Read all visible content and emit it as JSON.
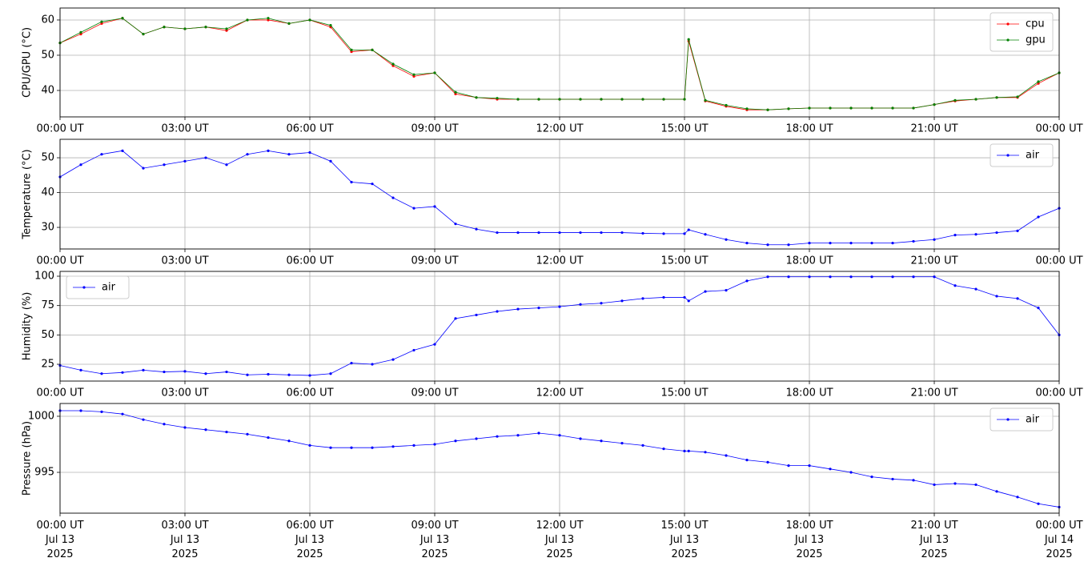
{
  "chart_data": [
    {
      "type": "line",
      "y_label": "CPU/GPU (°C)",
      "grid": true,
      "legend": "upper right",
      "xlim": [
        0,
        24
      ],
      "ylim": [
        32.5,
        63.4
      ],
      "yticks": [
        40,
        50,
        60
      ],
      "xticks": [
        {
          "value": 0,
          "label": "00:00 UT"
        },
        {
          "value": 3,
          "label": "03:00 UT"
        },
        {
          "value": 6,
          "label": "06:00 UT"
        },
        {
          "value": 9,
          "label": "09:00 UT"
        },
        {
          "value": 12,
          "label": "12:00 UT"
        },
        {
          "value": 15,
          "label": "15:00 UT"
        },
        {
          "value": 18,
          "label": "18:00 UT"
        },
        {
          "value": 21,
          "label": "21:00 UT"
        },
        {
          "value": 24,
          "label": "00:00 UT"
        }
      ],
      "x": [
        0,
        0.5,
        1,
        1.5,
        2,
        2.5,
        3,
        3.5,
        4,
        4.5,
        5,
        5.5,
        6,
        6.5,
        7,
        7.5,
        8,
        8.5,
        9,
        9.5,
        10,
        10.5,
        11,
        11.5,
        12,
        12.5,
        13,
        13.5,
        14,
        14.5,
        15,
        15.1,
        15.5,
        16,
        16.5,
        17,
        17.5,
        18,
        18.5,
        19,
        19.5,
        20,
        20.5,
        21,
        21.5,
        22,
        22.5,
        23,
        23.5,
        24
      ],
      "series": [
        {
          "name": "cpu",
          "color": "#ff0000",
          "values": [
            53.5,
            56,
            59,
            60.5,
            56,
            58,
            57.5,
            58,
            57,
            60,
            60,
            59,
            60,
            58,
            51,
            51.5,
            47,
            44,
            45,
            39,
            38,
            37.5,
            37.5,
            37.5,
            37.5,
            37.5,
            37.5,
            37.5,
            37.5,
            37.5,
            37.5,
            54,
            37,
            35.5,
            34.5,
            34.5,
            34.8,
            35,
            35,
            35,
            35,
            35,
            35,
            36,
            37,
            37.5,
            38,
            38,
            42,
            45
          ]
        },
        {
          "name": "gpu",
          "color": "#008000",
          "values": [
            53.5,
            56.5,
            59.5,
            60.5,
            56,
            58,
            57.5,
            58,
            57.5,
            60,
            60.5,
            59,
            60,
            58.5,
            51.5,
            51.5,
            47.5,
            44.5,
            45,
            39.5,
            38,
            37.8,
            37.5,
            37.5,
            37.5,
            37.5,
            37.5,
            37.5,
            37.5,
            37.5,
            37.5,
            54.5,
            37.2,
            35.8,
            34.8,
            34.5,
            34.8,
            35,
            35,
            35,
            35,
            35,
            35,
            36,
            37.2,
            37.5,
            38,
            38.2,
            42.5,
            45
          ]
        }
      ]
    },
    {
      "type": "line",
      "y_label": "Temperature (°C)",
      "grid": true,
      "legend": "upper right",
      "xlim": [
        0,
        24
      ],
      "ylim": [
        23.8,
        55.3
      ],
      "yticks": [
        30,
        40,
        50
      ],
      "xticks": [
        {
          "value": 0,
          "label": "00:00 UT"
        },
        {
          "value": 3,
          "label": "03:00 UT"
        },
        {
          "value": 6,
          "label": "06:00 UT"
        },
        {
          "value": 9,
          "label": "09:00 UT"
        },
        {
          "value": 12,
          "label": "12:00 UT"
        },
        {
          "value": 15,
          "label": "15:00 UT"
        },
        {
          "value": 18,
          "label": "18:00 UT"
        },
        {
          "value": 21,
          "label": "21:00 UT"
        },
        {
          "value": 24,
          "label": "00:00 UT"
        }
      ],
      "x": [
        0,
        0.5,
        1,
        1.5,
        2,
        2.5,
        3,
        3.5,
        4,
        4.5,
        5,
        5.5,
        6,
        6.5,
        7,
        7.5,
        8,
        8.5,
        9,
        9.5,
        10,
        10.5,
        11,
        11.5,
        12,
        12.5,
        13,
        13.5,
        14,
        14.5,
        15,
        15.1,
        15.5,
        16,
        16.5,
        17,
        17.5,
        18,
        18.5,
        19,
        19.5,
        20,
        20.5,
        21,
        21.5,
        22,
        22.5,
        23,
        23.5,
        24
      ],
      "series": [
        {
          "name": "air",
          "color": "#0000ff",
          "values": [
            44.5,
            48,
            51,
            52,
            47,
            48,
            49,
            50,
            48,
            51,
            52,
            51,
            51.5,
            49,
            43,
            42.5,
            38.5,
            35.5,
            36,
            31,
            29.5,
            28.5,
            28.5,
            28.5,
            28.5,
            28.5,
            28.5,
            28.5,
            28.3,
            28.2,
            28.2,
            29.3,
            28,
            26.5,
            25.5,
            25,
            25,
            25.5,
            25.5,
            25.5,
            25.5,
            25.5,
            26,
            26.5,
            27.8,
            28,
            28.5,
            29,
            33,
            35.5
          ]
        }
      ]
    },
    {
      "type": "line",
      "y_label": "Humidity (%)",
      "grid": true,
      "legend": "upper left",
      "xlim": [
        0,
        24
      ],
      "ylim": [
        10.7,
        104.1
      ],
      "yticks": [
        25,
        50,
        75,
        100
      ],
      "xticks": [
        {
          "value": 0,
          "label": "00:00 UT"
        },
        {
          "value": 3,
          "label": "03:00 UT"
        },
        {
          "value": 6,
          "label": "06:00 UT"
        },
        {
          "value": 9,
          "label": "09:00 UT"
        },
        {
          "value": 12,
          "label": "12:00 UT"
        },
        {
          "value": 15,
          "label": "15:00 UT"
        },
        {
          "value": 18,
          "label": "18:00 UT"
        },
        {
          "value": 21,
          "label": "21:00 UT"
        },
        {
          "value": 24,
          "label": "00:00 UT"
        }
      ],
      "x": [
        0,
        0.5,
        1,
        1.5,
        2,
        2.5,
        3,
        3.5,
        4,
        4.5,
        5,
        5.5,
        6,
        6.5,
        7,
        7.5,
        8,
        8.5,
        9,
        9.5,
        10,
        10.5,
        11,
        11.5,
        12,
        12.5,
        13,
        13.5,
        14,
        14.5,
        15,
        15.1,
        15.5,
        16,
        16.5,
        17,
        17.5,
        18,
        18.5,
        19,
        19.5,
        20,
        20.5,
        21,
        21.5,
        22,
        22.5,
        23,
        23.5,
        24
      ],
      "series": [
        {
          "name": "air",
          "color": "#0000ff",
          "values": [
            24,
            20,
            17,
            18,
            20,
            18.5,
            19,
            17,
            18.5,
            16,
            16.5,
            16,
            15.5,
            17,
            26,
            25,
            29,
            37,
            42,
            64,
            67,
            70,
            72,
            73,
            74,
            76,
            77,
            79,
            81,
            82,
            82,
            79,
            87,
            88,
            96,
            99.5,
            99.5,
            99.5,
            99.5,
            99.5,
            99.5,
            99.5,
            99.5,
            99.5,
            92,
            89,
            83,
            81,
            73,
            50
          ]
        }
      ]
    },
    {
      "type": "line",
      "y_label": "Pressure (hPa)",
      "grid": true,
      "legend": "upper right",
      "xlim": [
        0,
        24
      ],
      "ylim": [
        991.36,
        1001.14
      ],
      "yticks": [
        995,
        1000
      ],
      "xticks": [
        {
          "value": 0,
          "label": [
            "00:00 UT",
            "Jul 13",
            "2025"
          ]
        },
        {
          "value": 3,
          "label": [
            "03:00 UT",
            "Jul 13",
            "2025"
          ]
        },
        {
          "value": 6,
          "label": [
            "06:00 UT",
            "Jul 13",
            "2025"
          ]
        },
        {
          "value": 9,
          "label": [
            "09:00 UT",
            "Jul 13",
            "2025"
          ]
        },
        {
          "value": 12,
          "label": [
            "12:00 UT",
            "Jul 13",
            "2025"
          ]
        },
        {
          "value": 15,
          "label": [
            "15:00 UT",
            "Jul 13",
            "2025"
          ]
        },
        {
          "value": 18,
          "label": [
            "18:00 UT",
            "Jul 13",
            "2025"
          ]
        },
        {
          "value": 21,
          "label": [
            "21:00 UT",
            "Jul 13",
            "2025"
          ]
        },
        {
          "value": 24,
          "label": [
            "00:00 UT",
            "Jul 14",
            "2025"
          ]
        }
      ],
      "x": [
        0,
        0.5,
        1,
        1.5,
        2,
        2.5,
        3,
        3.5,
        4,
        4.5,
        5,
        5.5,
        6,
        6.5,
        7,
        7.5,
        8,
        8.5,
        9,
        9.5,
        10,
        10.5,
        11,
        11.5,
        12,
        12.5,
        13,
        13.5,
        14,
        14.5,
        15,
        15.1,
        15.5,
        16,
        16.5,
        17,
        17.5,
        18,
        18.5,
        19,
        19.5,
        20,
        20.5,
        21,
        21.5,
        22,
        22.5,
        23,
        23.5,
        24
      ],
      "series": [
        {
          "name": "air",
          "color": "#0000ff",
          "values": [
            1000.5,
            1000.5,
            1000.4,
            1000.2,
            999.7,
            999.3,
            999,
            998.8,
            998.6,
            998.4,
            998.1,
            997.8,
            997.4,
            997.2,
            997.2,
            997.2,
            997.3,
            997.4,
            997.5,
            997.8,
            998,
            998.2,
            998.3,
            998.5,
            998.3,
            998,
            997.8,
            997.6,
            997.4,
            997.1,
            996.9,
            996.9,
            996.8,
            996.5,
            996.1,
            995.9,
            995.6,
            995.6,
            995.3,
            995,
            994.6,
            994.4,
            994.3,
            993.9,
            994,
            993.9,
            993.3,
            992.8,
            992.2,
            991.9
          ]
        }
      ]
    }
  ]
}
